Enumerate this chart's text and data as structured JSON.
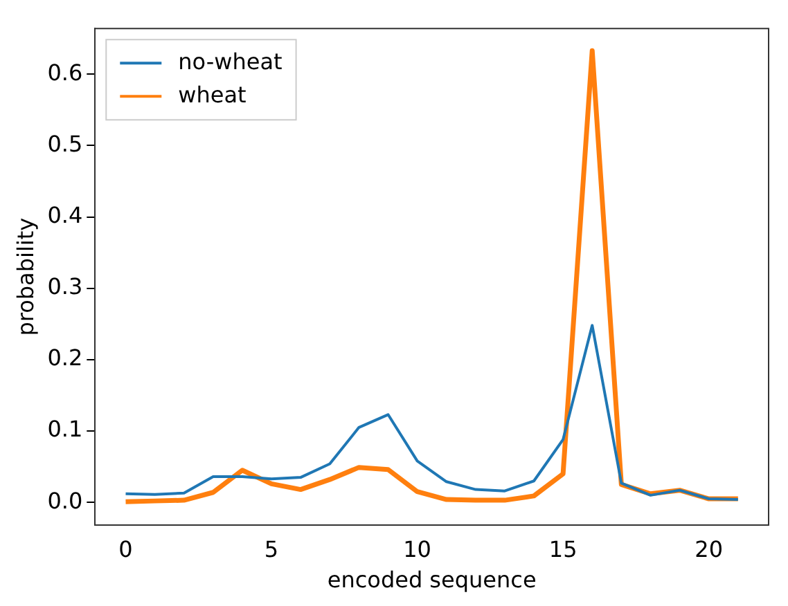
{
  "chart_data": {
    "type": "line",
    "xlabel": "encoded sequence",
    "ylabel": "probability",
    "x": [
      0,
      1,
      2,
      3,
      4,
      5,
      6,
      7,
      8,
      9,
      10,
      11,
      12,
      13,
      14,
      15,
      16,
      17,
      18,
      19,
      20,
      21
    ],
    "series": [
      {
        "name": "no-wheat",
        "color": "#1f77b4",
        "values": [
          0.012,
          0.011,
          0.013,
          0.036,
          0.036,
          0.033,
          0.035,
          0.054,
          0.105,
          0.123,
          0.058,
          0.029,
          0.018,
          0.016,
          0.03,
          0.088,
          0.248,
          0.027,
          0.01,
          0.017,
          0.005,
          0.004
        ]
      },
      {
        "name": "wheat",
        "color": "#ff7f0e",
        "values": [
          0.001,
          0.002,
          0.003,
          0.014,
          0.045,
          0.026,
          0.018,
          0.032,
          0.049,
          0.046,
          0.015,
          0.004,
          0.003,
          0.003,
          0.009,
          0.04,
          0.633,
          0.025,
          0.012,
          0.017,
          0.005,
          0.005
        ]
      }
    ],
    "xlim": [
      -1.05,
      22.05
    ],
    "xticks": [
      0,
      5,
      10,
      15,
      20
    ],
    "ylim": [
      -0.032,
      0.664
    ],
    "yticks": [
      {
        "value": 0,
        "label": "0.0"
      },
      0.1,
      0.2,
      0.3,
      0.4,
      0.5,
      0.6
    ],
    "legend": "top left",
    "grid": false,
    "marker": "none",
    "line_style": "solid"
  }
}
